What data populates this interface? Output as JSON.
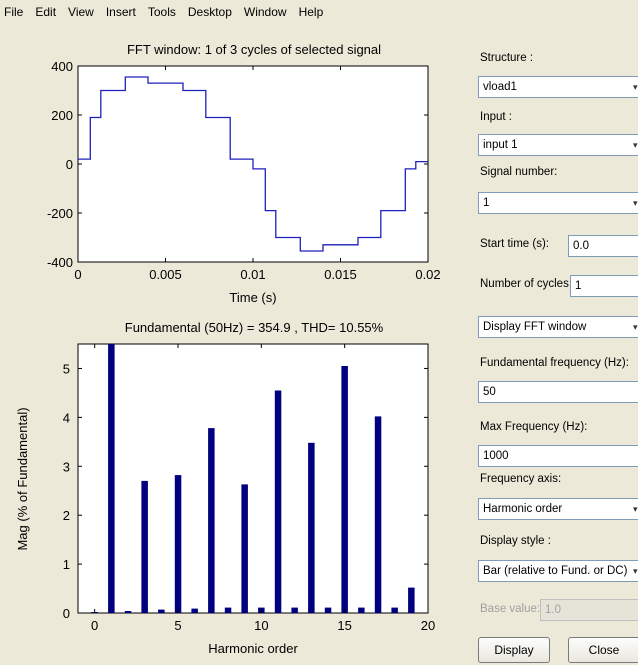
{
  "menu": [
    "File",
    "Edit",
    "View",
    "Insert",
    "Tools",
    "Desktop",
    "Window",
    "Help"
  ],
  "chart_data": [
    {
      "type": "line",
      "title": "FFT window: 1 of 3 cycles of selected signal",
      "xlabel": "Time (s)",
      "ylabel": "",
      "xlim": [
        0,
        0.02
      ],
      "ylim": [
        -400,
        400
      ],
      "xticks": [
        "0",
        "0.005",
        "0.01",
        "0.015",
        "0.02"
      ],
      "yticks": [
        "400",
        "200",
        "0",
        "-200",
        "-400"
      ],
      "x": [
        0,
        0.0007,
        0.0007,
        0.0013,
        0.0013,
        0.0027,
        0.0027,
        0.004,
        0.004,
        0.006,
        0.006,
        0.0073,
        0.0073,
        0.0087,
        0.0087,
        0.0093,
        0.0093,
        0.01,
        0.01,
        0.0107,
        0.0107,
        0.0113,
        0.0113,
        0.0127,
        0.0127,
        0.014,
        0.014,
        0.016,
        0.016,
        0.0173,
        0.0173,
        0.0187,
        0.0187,
        0.0193,
        0.0193,
        0.02
      ],
      "y": [
        20,
        20,
        190,
        190,
        300,
        300,
        355,
        355,
        330,
        330,
        300,
        300,
        190,
        190,
        20,
        20,
        20,
        20,
        -20,
        -20,
        -190,
        -190,
        -300,
        -300,
        -355,
        -355,
        -330,
        -330,
        -300,
        -300,
        -190,
        -190,
        -20,
        -20,
        10,
        10
      ]
    },
    {
      "type": "bar",
      "title": "Fundamental (50Hz) = 354.9 , THD= 10.55%",
      "xlabel": "Harmonic order",
      "ylabel": "Mag (% of Fundamental)",
      "xlim": [
        -1,
        20
      ],
      "ylim": [
        0,
        5.5
      ],
      "xticks": [
        "0",
        "5",
        "10",
        "15",
        "20"
      ],
      "yticks": [
        "5",
        "4",
        "3",
        "2",
        "1",
        "0"
      ],
      "categories": [
        0,
        2,
        3,
        4,
        5,
        6,
        7,
        8,
        9,
        10,
        11,
        12,
        13,
        14,
        15,
        16,
        17,
        18,
        19
      ],
      "values": [
        0.02,
        0.04,
        2.7,
        0.07,
        2.82,
        0.09,
        3.78,
        0.11,
        2.63,
        0.11,
        4.55,
        0.11,
        3.48,
        0.11,
        5.05,
        0.11,
        4.02,
        0.11,
        0.52
      ],
      "fundamental_bar": {
        "order": 1,
        "value": 5.5,
        "note": "clipped (100%)"
      }
    }
  ],
  "panel": {
    "structure_label": "Structure :",
    "structure_value": "vload1",
    "input_label": "Input :",
    "input_value": "input 1",
    "signal_label": "Signal number:",
    "signal_value": "1",
    "start_label": "Start time (s):",
    "start_value": "0.0",
    "cycles_label": "Number of cycles:",
    "cycles_value": "1",
    "display_fft_value": "Display FFT window",
    "fund_label": "Fundamental frequency (Hz):",
    "fund_value": "50",
    "maxf_label": "Max Frequency (Hz):",
    "maxf_value": "1000",
    "faxis_label": "Frequency axis:",
    "faxis_value": "Harmonic order",
    "style_label": "Display style :",
    "style_value": "Bar (relative to Fund. or DC)",
    "base_label": "Base value:",
    "base_value": "1.0",
    "display_button": "Display",
    "close_button": "Close"
  }
}
